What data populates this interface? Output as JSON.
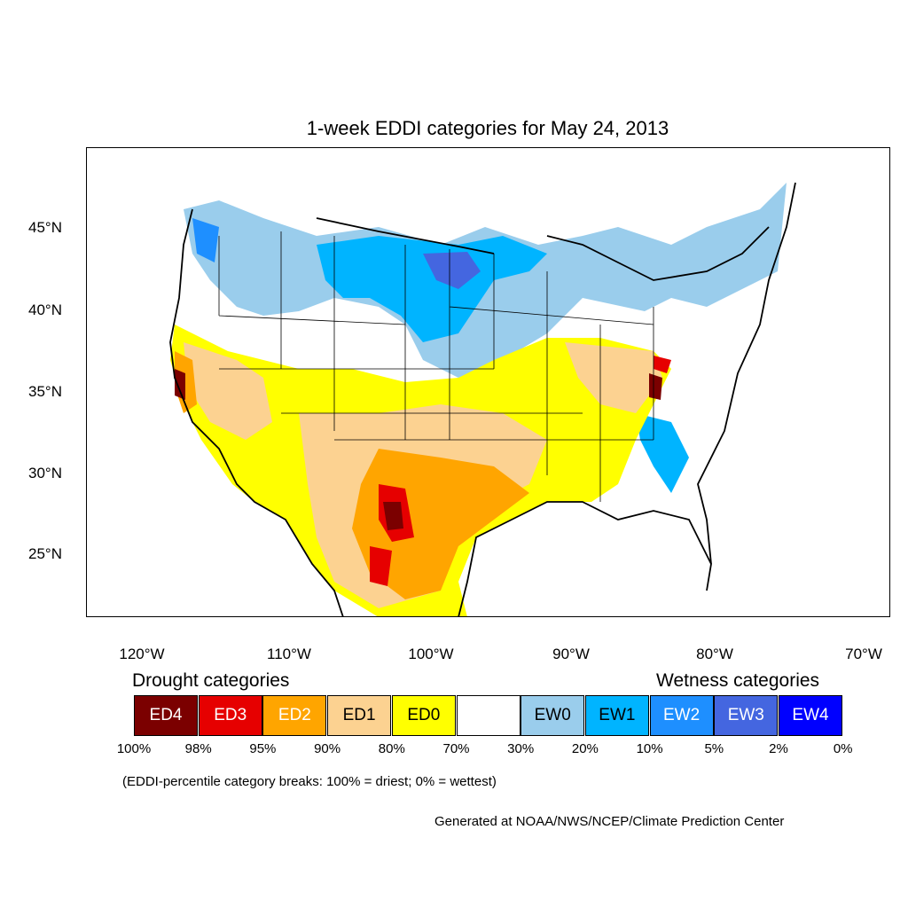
{
  "title": "1-week EDDI categories for May 24, 2013",
  "y_ticks": [
    "45°N",
    "40°N",
    "35°N",
    "30°N",
    "25°N"
  ],
  "x_ticks": [
    "120°W",
    "110°W",
    "100°W",
    "90°W",
    "80°W",
    "70°W"
  ],
  "legend": {
    "drought_heading": "Drought categories",
    "wetness_heading": "Wetness categories",
    "categories": [
      {
        "label": "ED4",
        "color": "#7b0000",
        "text_color": "#ffffff"
      },
      {
        "label": "ED3",
        "color": "#e60000",
        "text_color": "#ffffff"
      },
      {
        "label": "ED2",
        "color": "#ffa500",
        "text_color": "#ffffff"
      },
      {
        "label": "ED1",
        "color": "#fcd291",
        "text_color": "#000000"
      },
      {
        "label": "ED0",
        "color": "#ffff00",
        "text_color": "#000000"
      },
      {
        "label": "",
        "color": "#ffffff",
        "text_color": "#000000"
      },
      {
        "label": "EW0",
        "color": "#9acdec",
        "text_color": "#000000"
      },
      {
        "label": "EW1",
        "color": "#00b4ff",
        "text_color": "#000000"
      },
      {
        "label": "EW2",
        "color": "#1e8fff",
        "text_color": "#ffffff"
      },
      {
        "label": "EW3",
        "color": "#4466e0",
        "text_color": "#ffffff"
      },
      {
        "label": "EW4",
        "color": "#0000ff",
        "text_color": "#ffffff"
      }
    ],
    "breaks": [
      "100%",
      "98%",
      "95%",
      "90%",
      "80%",
      "70%",
      "30%",
      "20%",
      "10%",
      "5%",
      "2%",
      "0%"
    ]
  },
  "footnote": "(EDDI-percentile category breaks: 100% = driest; 0% = wettest)",
  "credit": "Generated at NOAA/NWS/NCEP/Climate Prediction Center"
}
